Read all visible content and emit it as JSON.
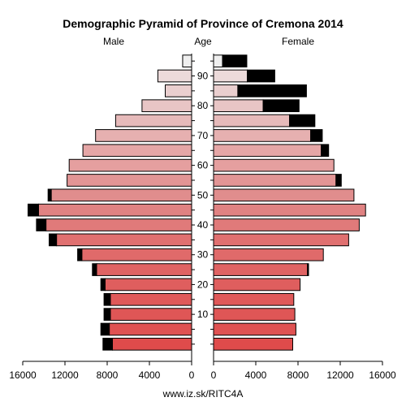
{
  "chart_data": {
    "type": "bar",
    "title": "Demographic Pyramid of Province of Cremona 2014",
    "left_label": "Male",
    "center_label": "Age",
    "right_label": "Female",
    "source": "www.iz.sk/RITC4A",
    "age_ticks": [
      "90",
      "80",
      "70",
      "60",
      "50",
      "40",
      "30",
      "20",
      "10"
    ],
    "age_tick_groups": [
      90,
      80,
      70,
      60,
      50,
      40,
      30,
      20,
      10
    ],
    "x_ticks_left": [
      "16000",
      "12000",
      "8000",
      "4000",
      "0"
    ],
    "x_ticks_right": [
      "0",
      "4000",
      "8000",
      "12000",
      "16000"
    ],
    "xlim": [
      0,
      16000
    ],
    "age_groups": [
      "0-4",
      "5-9",
      "10-14",
      "15-19",
      "20-24",
      "25-29",
      "30-34",
      "35-39",
      "40-44",
      "45-49",
      "50-54",
      "55-59",
      "60-64",
      "65-69",
      "70-74",
      "75-79",
      "80-84",
      "85-89",
      "90-94",
      "95+"
    ],
    "series": [
      {
        "name": "Male",
        "values": [
          7500,
          7800,
          7700,
          7700,
          8200,
          9000,
          10400,
          12800,
          13800,
          14500,
          13300,
          11800,
          11600,
          10300,
          9100,
          7200,
          4700,
          2500,
          3200,
          850
        ],
        "excess": [
          900,
          800,
          600,
          600,
          400,
          400,
          400,
          700,
          900,
          1000,
          300,
          0,
          0,
          0,
          0,
          0,
          0,
          0,
          0,
          0
        ]
      },
      {
        "name": "Female",
        "values": [
          7500,
          7800,
          7700,
          7600,
          8200,
          8900,
          10400,
          12800,
          13800,
          14400,
          13300,
          11600,
          11400,
          10200,
          9200,
          7200,
          4700,
          2300,
          3200,
          850
        ],
        "excess": [
          0,
          0,
          0,
          0,
          0,
          100,
          0,
          0,
          0,
          0,
          0,
          500,
          0,
          700,
          1100,
          2400,
          3400,
          6500,
          2600,
          2300
        ]
      }
    ],
    "colors": [
      "#df4b4b",
      "#df5252",
      "#df5656",
      "#df5959",
      "#df5e5e",
      "#df6363",
      "#e06a6a",
      "#e07070",
      "#e07a7a",
      "#e08282",
      "#e08d8d",
      "#e29595",
      "#e59f9f",
      "#e5a6a6",
      "#e6b0b0",
      "#e6baba",
      "#e8c5c5",
      "#eacfcf",
      "#ecdada",
      "#efefef"
    ],
    "excess_color": "#000000"
  }
}
